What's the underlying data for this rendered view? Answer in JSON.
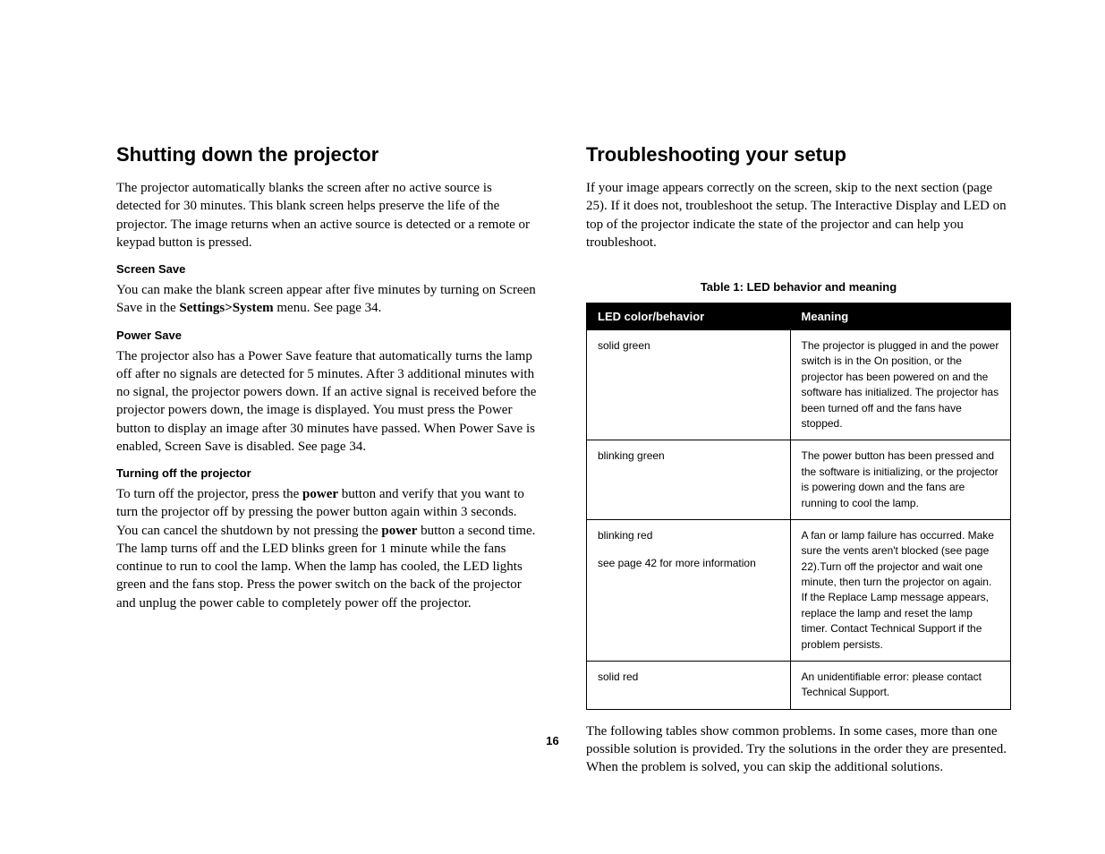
{
  "left": {
    "heading": "Shutting down the projector",
    "intro": "The projector automatically blanks the screen after no active source is detected for 30 minutes. This blank screen helps preserve the life of the projector. The image returns when an active source is detected or a remote or keypad button is pressed.",
    "screen_save_head": "Screen Save",
    "screen_save_p1a": "You can make the blank screen appear after five minutes by turning on Screen Save in the ",
    "screen_save_bold": "Settings>System",
    "screen_save_p1b": " menu. See page 34.",
    "power_save_head": "Power Save",
    "power_save_body": "The projector also has a Power Save feature that automatically turns the lamp off after no signals are detected for 5 minutes. After 3 additional minutes with no signal, the projector powers down. If an active signal is received before the projector powers down, the image is displayed. You must press the Power button to display an image after 30 minutes have passed. When Power Save is enabled, Screen Save is disabled. See page 34.",
    "turnoff_head": "Turning off the projector",
    "turnoff_1a": "To turn off the projector, press the ",
    "turnoff_bold1": "power",
    "turnoff_1b": " button and verify that you want to turn the projector off by pressing the power button again within 3 seconds. You can cancel the shutdown by not pressing the ",
    "turnoff_bold2": "power",
    "turnoff_1c": " button a second time. The lamp turns off and the LED blinks green for 1 minute while the fans continue to run to cool the lamp. When the lamp has cooled, the LED lights green and the fans stop. Press the power switch on the back of the projector and unplug the power cable to completely power off the projector."
  },
  "right": {
    "heading": "Troubleshooting your setup",
    "intro": "If your image appears correctly on the screen, skip to the next section (page 25). If it does not, troubleshoot the setup. The Interactive Display and LED on top of the projector indicate the state of the projector and can help you troubleshoot.",
    "table_caption": "Table 1: LED behavior and meaning",
    "th1": "LED color/behavior",
    "th2": "Meaning",
    "rows": [
      {
        "c1": "solid green",
        "c1b": "",
        "c2": "The projector is plugged in and the power switch is in the On position, or the projector has been powered on and the software has initialized. The projector has been turned off and the fans have stopped."
      },
      {
        "c1": "blinking green",
        "c1b": "",
        "c2": "The power button has been pressed and the software is initializing, or the projector is powering down and the fans are running to cool the lamp."
      },
      {
        "c1": "blinking red",
        "c1b": "see page 42 for more information",
        "c2": "A fan or lamp failure has occurred. Make sure the vents aren't blocked (see page 22).Turn off the projector and wait one minute, then turn the projector on again. If the Replace Lamp message appears, replace the lamp and reset the lamp timer. Contact Technical Support if the problem persists."
      },
      {
        "c1": "solid red",
        "c1b": "",
        "c2": "An unidentifiable error: please contact Technical Support."
      }
    ],
    "after_table": "The following tables show common problems. In some cases, more than one possible solution is provided. Try the solutions in the order they are presented. When the problem is solved, you can skip the additional solutions."
  },
  "page_number": "16"
}
